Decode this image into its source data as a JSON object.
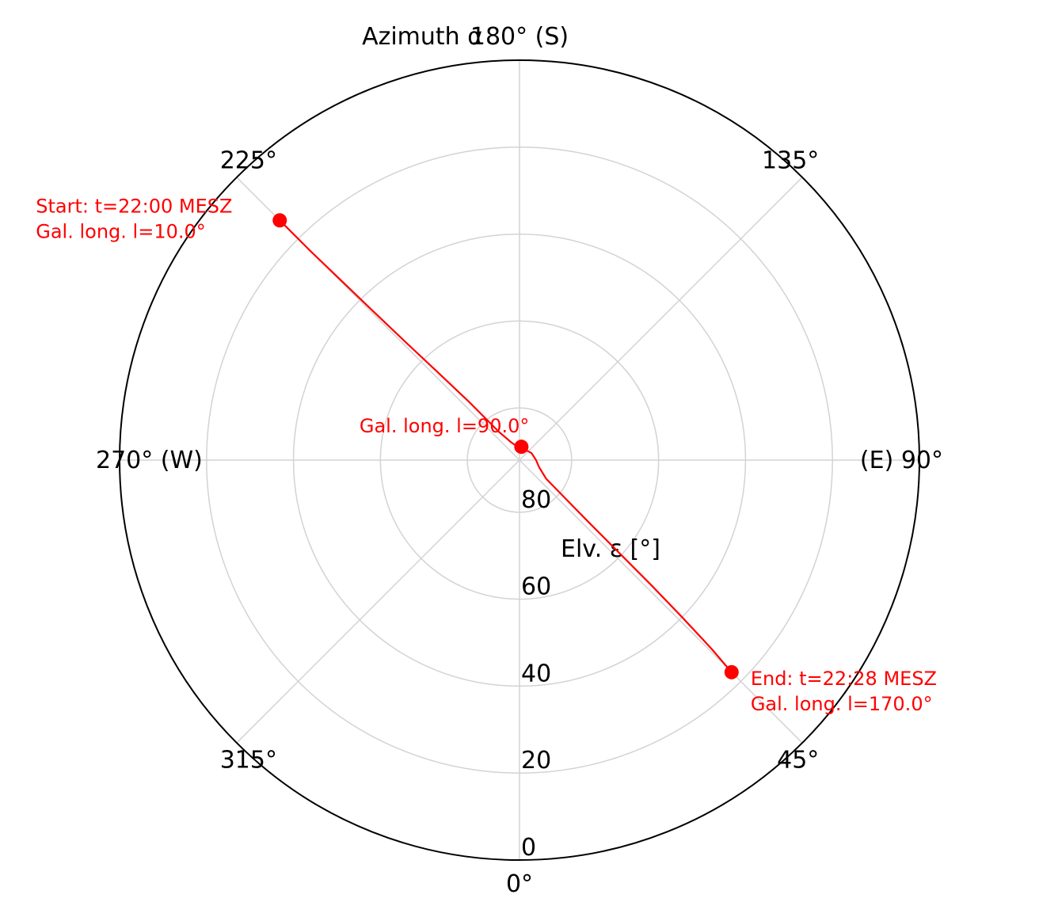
{
  "chart_data": {
    "type": "polar-line",
    "title": "",
    "theta_label": "Azimuth α",
    "r_label": "Elv. ε [°]",
    "r_ticks": [
      "0",
      "20",
      "40",
      "60",
      "80"
    ],
    "r_range": [
      0,
      92
    ],
    "r_direction": "inward",
    "theta_zero": "bottom",
    "theta_direction": "counterclockwise",
    "grid": true,
    "azimuth_ticks": [
      {
        "deg": 0,
        "label": "0°"
      },
      {
        "deg": 45,
        "label": "45°"
      },
      {
        "deg": 90,
        "label": "(E) 90°"
      },
      {
        "deg": 135,
        "label": "135°"
      },
      {
        "deg": 180,
        "label": "180° (S)"
      },
      {
        "deg": 225,
        "label": "225°"
      },
      {
        "deg": 270,
        "label": "270° (W)"
      },
      {
        "deg": 315,
        "label": "315°"
      }
    ],
    "series": [
      {
        "color": "#ff0000",
        "points": [
          {
            "az": 225,
            "elv": 14
          },
          {
            "az": 225,
            "elv": 24
          },
          {
            "az": 224.8,
            "elv": 34
          },
          {
            "az": 224.5,
            "elv": 44
          },
          {
            "az": 224,
            "elv": 54
          },
          {
            "az": 223,
            "elv": 64
          },
          {
            "az": 221,
            "elv": 74
          },
          {
            "az": 216,
            "elv": 84
          },
          {
            "az": 205,
            "elv": 87.5
          },
          {
            "az": 190,
            "elv": 88.8
          },
          {
            "az": 165,
            "elv": 89.2
          },
          {
            "az": 120,
            "elv": 88.8
          },
          {
            "az": 90,
            "elv": 88.2
          },
          {
            "az": 70,
            "elv": 87.2
          },
          {
            "az": 55,
            "elv": 84.5
          },
          {
            "az": 50,
            "elv": 78
          },
          {
            "az": 48,
            "elv": 70
          },
          {
            "az": 47,
            "elv": 60
          },
          {
            "az": 46.5,
            "elv": 50
          },
          {
            "az": 46,
            "elv": 40
          },
          {
            "az": 45.5,
            "elv": 30
          },
          {
            "az": 45,
            "elv": 23
          }
        ],
        "markers": [
          {
            "az": 225,
            "elv": 14
          },
          {
            "az": 172,
            "elv": 88.9
          },
          {
            "az": 45,
            "elv": 23
          }
        ]
      }
    ],
    "annotations": [
      {
        "lines": [
          "Start: t=22:00 MESZ",
          "Gal. long. l=10.0°"
        ]
      },
      {
        "lines": [
          "Gal. long. l=90.0°"
        ]
      },
      {
        "lines": [
          "End: t=22:28 MESZ",
          "Gal. long. l=170.0°"
        ]
      }
    ],
    "colors": {
      "grid": "#d3d3d3",
      "frame": "#000000",
      "series": "#ff0000"
    }
  }
}
